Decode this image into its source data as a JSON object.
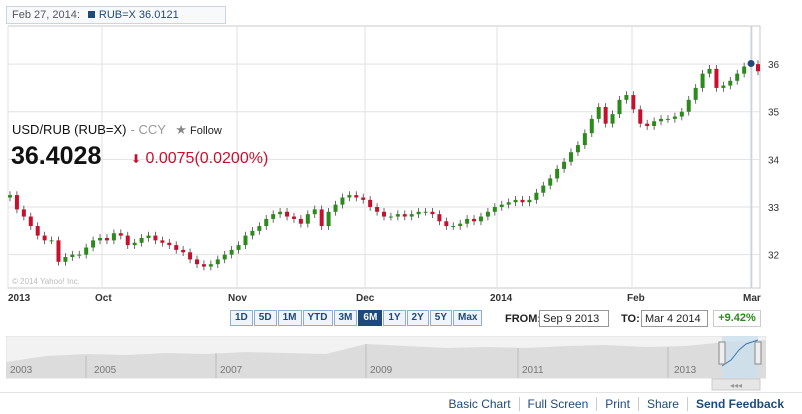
{
  "header": {
    "date": "Feb 27, 2014:",
    "symbol_value": "RUB=X 36.0121"
  },
  "quote": {
    "name": "USD/RUB (RUB=X)",
    "ccy": "- CCY",
    "follow_label": "Follow",
    "price": "36.4028",
    "change": "0.0075",
    "change_pct": "(0.0200%)",
    "up_color": "#2a8a1a",
    "down_color": "#c8102e"
  },
  "copyright": "© 2014 Yahoo! Inc.",
  "range_buttons": [
    "1D",
    "5D",
    "1M",
    "YTD",
    "3M",
    "6M",
    "1Y",
    "2Y",
    "5Y",
    "Max"
  ],
  "active_range": "6M",
  "from_label": "FROM:",
  "from_value": "Sep 9 2013",
  "to_label": "TO:",
  "to_value": "Mar 4 2014",
  "period_change": "+9.42%",
  "footer_links": [
    "Basic Chart",
    "Full Screen",
    "Print",
    "Share",
    "Send Feedback"
  ],
  "chart_data": {
    "type": "candlestick",
    "x_labels": [
      "2013",
      "Oct",
      "Nov",
      "Dec",
      "2014",
      "Feb",
      "Mar"
    ],
    "y_ticks": [
      32,
      33,
      34,
      35,
      36
    ],
    "ylim": [
      31.3,
      36.8
    ],
    "grid": true,
    "marker": {
      "x_label": "Feb 27, 2014",
      "value": 36.0121
    },
    "closes": [
      33.25,
      32.95,
      32.8,
      32.6,
      32.4,
      32.3,
      32.3,
      31.85,
      31.95,
      32.0,
      32.0,
      32.15,
      32.3,
      32.35,
      32.3,
      32.45,
      32.4,
      32.2,
      32.25,
      32.35,
      32.4,
      32.3,
      32.25,
      32.2,
      32.1,
      32.05,
      31.9,
      31.8,
      31.75,
      31.8,
      31.9,
      32.0,
      32.1,
      32.2,
      32.4,
      32.5,
      32.6,
      32.75,
      32.85,
      32.9,
      32.8,
      32.75,
      32.65,
      32.85,
      32.95,
      32.6,
      32.9,
      33.05,
      33.2,
      33.25,
      33.2,
      33.15,
      33.0,
      32.9,
      32.8,
      32.8,
      32.85,
      32.8,
      32.85,
      32.9,
      32.9,
      32.85,
      32.7,
      32.6,
      32.6,
      32.65,
      32.75,
      32.7,
      32.8,
      32.9,
      33.0,
      33.05,
      33.1,
      33.15,
      33.1,
      33.15,
      33.3,
      33.45,
      33.6,
      33.8,
      33.95,
      34.15,
      34.3,
      34.55,
      34.85,
      35.1,
      34.75,
      34.95,
      35.25,
      35.35,
      35.05,
      34.75,
      34.7,
      34.8,
      34.85,
      34.85,
      34.9,
      35.0,
      35.25,
      35.5,
      35.8,
      35.9,
      35.5,
      35.55,
      35.65,
      35.8,
      35.95,
      36.0,
      35.85
    ]
  }
}
